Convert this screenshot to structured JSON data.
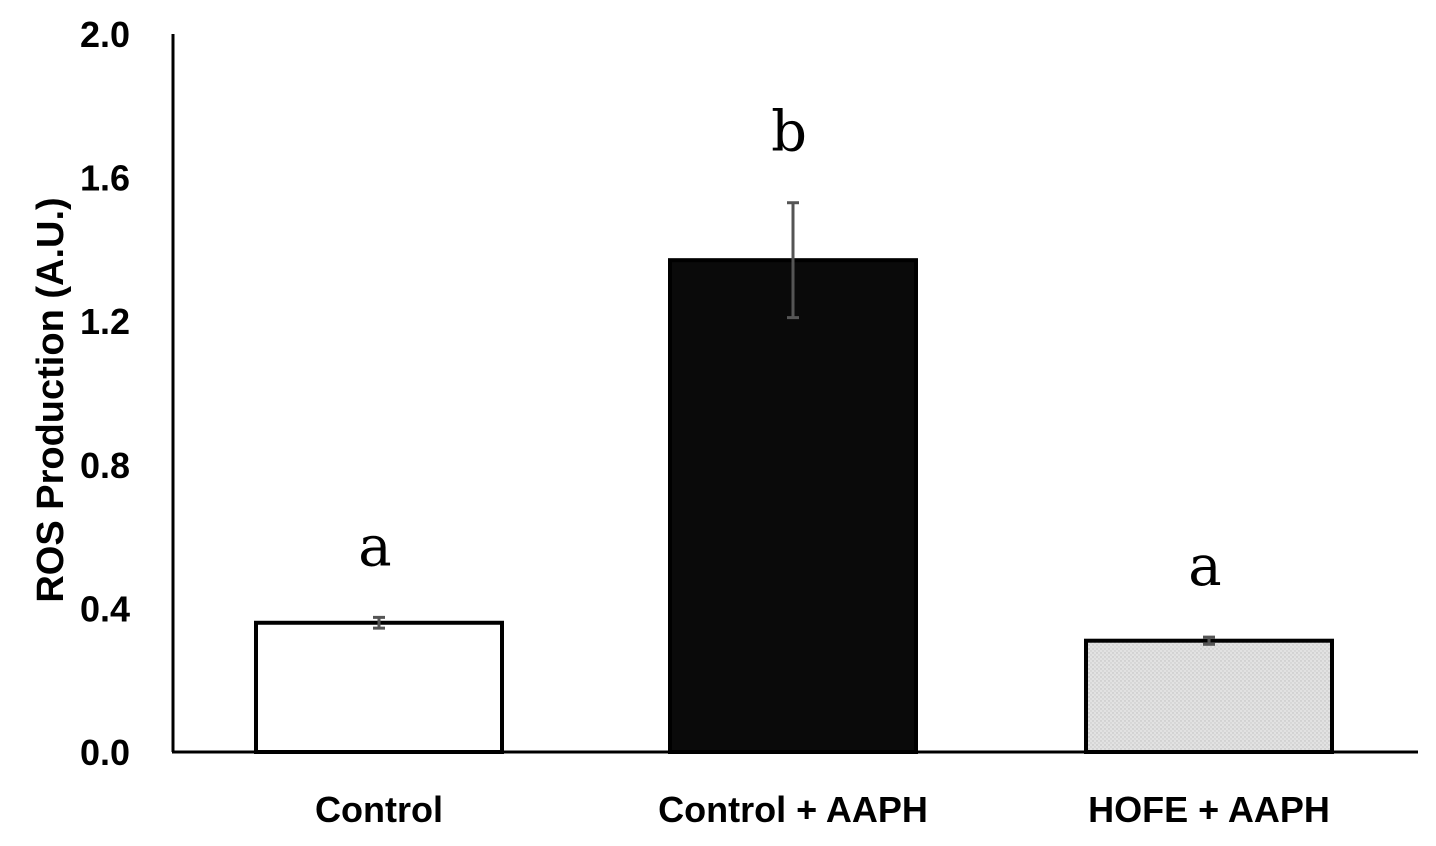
{
  "chart_data": {
    "type": "bar",
    "title": "",
    "xlabel": "",
    "ylabel": "ROS Production (A.U.)",
    "ylim": [
      0,
      2.0
    ],
    "yticks": [
      "0.0",
      "0.4",
      "0.8",
      "1.2",
      "1.6",
      "2.0"
    ],
    "grid": false,
    "legend": "none",
    "categories": [
      "Control",
      "Control + AAPH",
      "HOFE + AAPH"
    ],
    "values": [
      0.36,
      1.37,
      0.31
    ],
    "errors": [
      0.015,
      0.16,
      0.01
    ],
    "significance": [
      "a",
      "b",
      "a"
    ],
    "colors": [
      "#ffffff",
      "#0a0a0a",
      "#d9d9d9"
    ]
  }
}
